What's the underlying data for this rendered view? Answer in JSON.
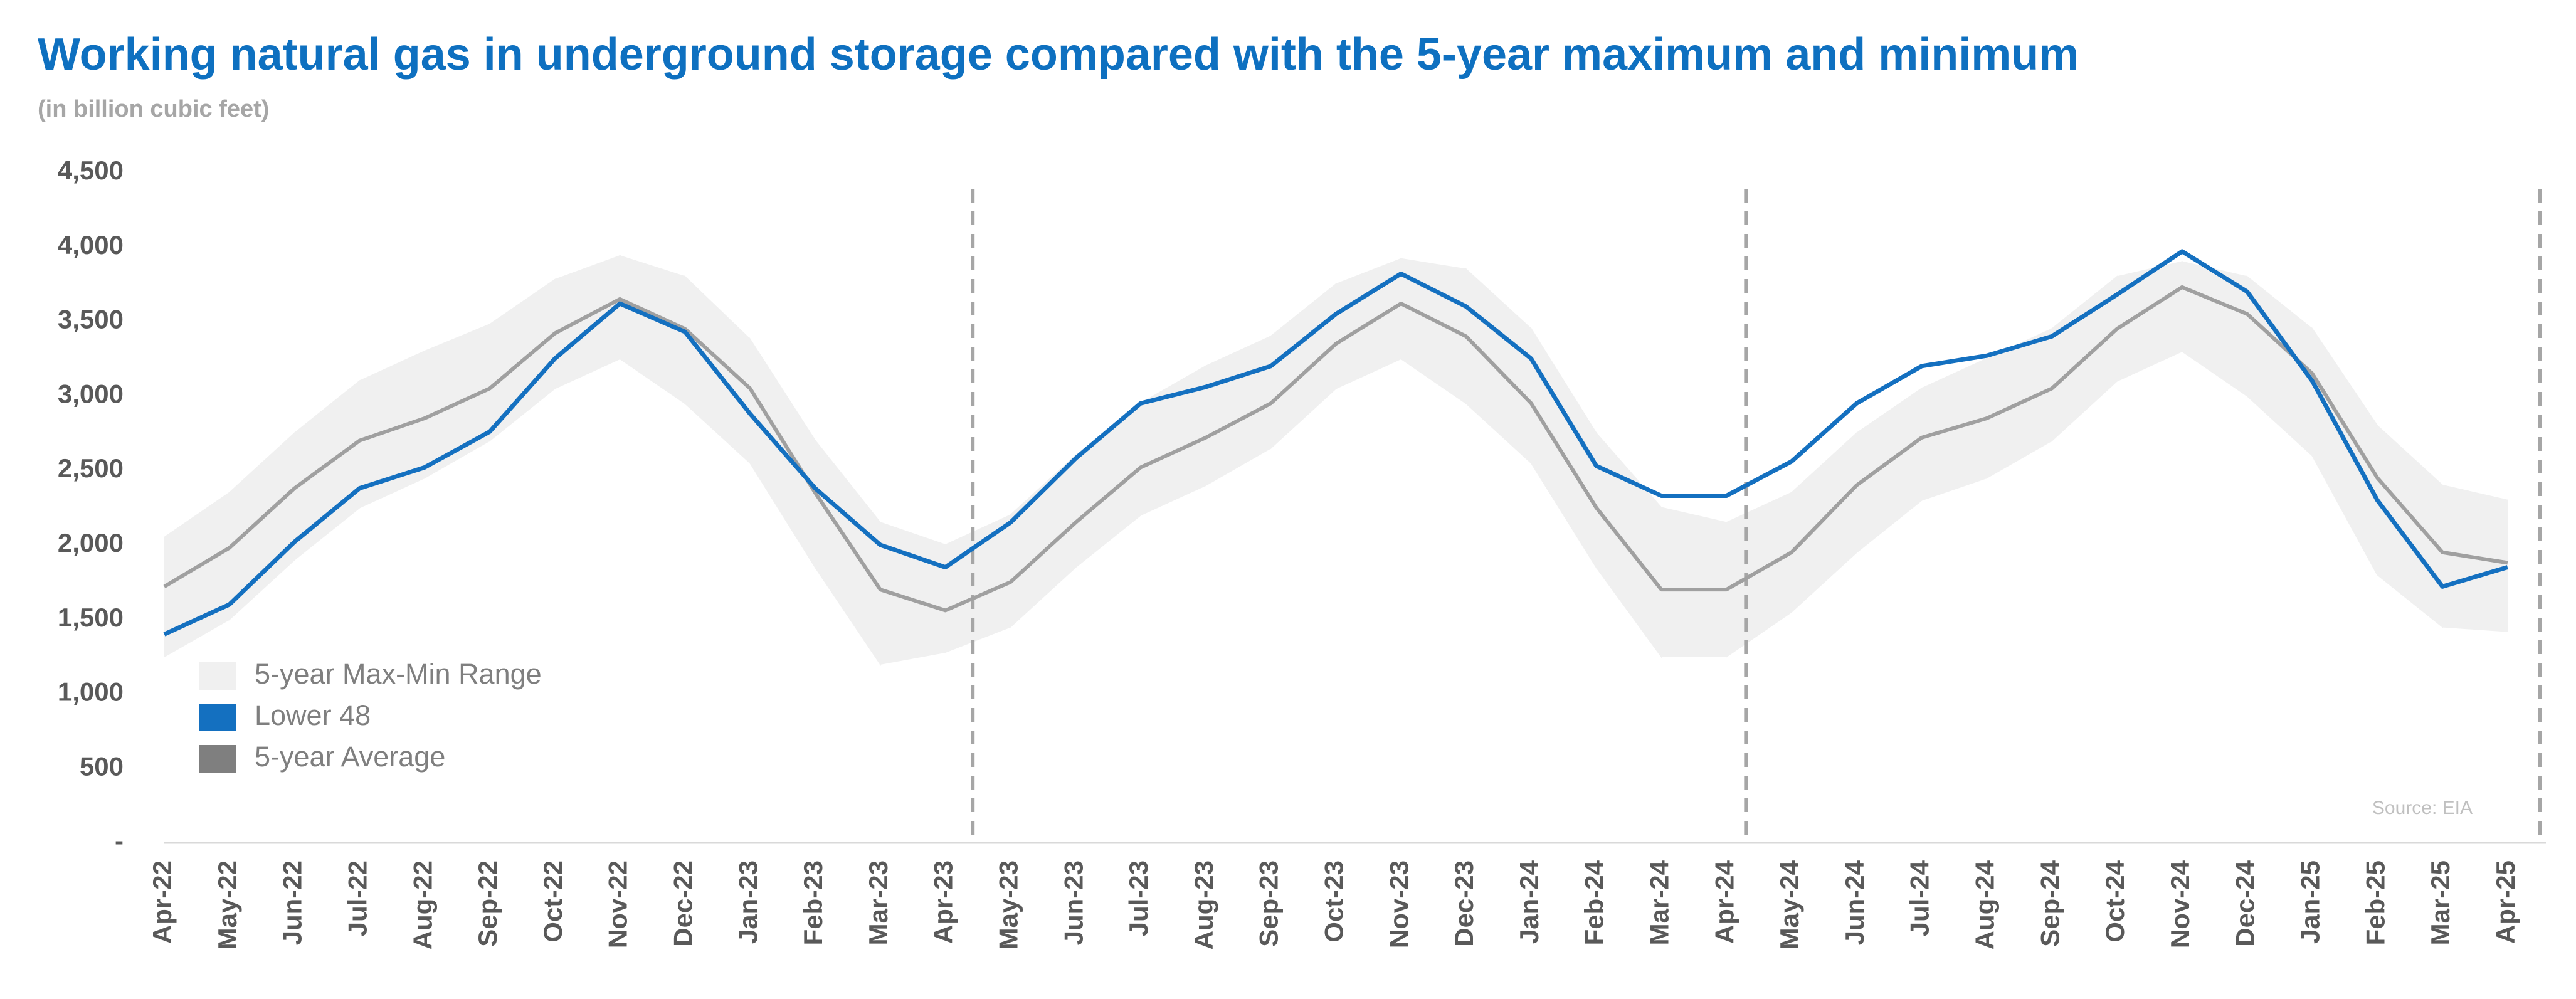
{
  "chart_data": {
    "type": "line",
    "title": "Working natural gas in underground storage compared with the  5-year maximum and minimum",
    "subtitle": "(in billion cubic feet)",
    "source": "Source: EIA",
    "categories": [
      "Apr-22",
      "May-22",
      "Jun-22",
      "Jul-22",
      "Aug-22",
      "Sep-22",
      "Oct-22",
      "Nov-22",
      "Dec-22",
      "Jan-23",
      "Feb-23",
      "Mar-23",
      "Apr-23",
      "May-23",
      "Jun-23",
      "Jul-23",
      "Aug-23",
      "Sep-23",
      "Oct-23",
      "Nov-23",
      "Dec-23",
      "Jan-24",
      "Feb-24",
      "Mar-24",
      "Apr-24",
      "May-24",
      "Jun-24",
      "Jul-24",
      "Aug-24",
      "Sep-24",
      "Oct-24",
      "Nov-24",
      "Dec-24",
      "Jan-25",
      "Feb-25",
      "Mar-25",
      "Apr-25"
    ],
    "ylim": [
      0,
      4500
    ],
    "yticks": [
      {
        "value": 0,
        "label": "-"
      },
      500,
      {
        "value": 1000,
        "label": "1,000"
      },
      {
        "value": 1500,
        "label": "1,500"
      },
      {
        "value": 2000,
        "label": "2,000"
      },
      {
        "value": 2500,
        "label": "2,500"
      },
      {
        "value": 3000,
        "label": "3,000"
      },
      {
        "value": 3500,
        "label": "3,500"
      },
      {
        "value": 4000,
        "label": "4,000"
      },
      {
        "value": 4500,
        "label": "4,500"
      }
    ],
    "series": [
      {
        "name": "5-year Max-Min Range",
        "color": "#f0f0f0",
        "values": [
          2050,
          2350,
          2750,
          3100,
          3300,
          3480,
          3780,
          3940,
          3800,
          3380,
          2700,
          2150,
          2000,
          2200,
          2600,
          2950,
          3200,
          3400,
          3750,
          3920,
          3850,
          3450,
          2750,
          2250,
          2150,
          2350,
          2750,
          3050,
          3250,
          3450,
          3800,
          3900,
          3800,
          3450,
          2800,
          2400,
          2300
        ],
        "low": [
          1250,
          1500,
          1900,
          2250,
          2450,
          2700,
          3050,
          3250,
          2950,
          2550,
          1850,
          1200,
          1280,
          1450,
          1850,
          2200,
          2400,
          2650,
          3050,
          3250,
          2950,
          2550,
          1850,
          1250,
          1250,
          1550,
          1950,
          2300,
          2450,
          2700,
          3100,
          3300,
          3000,
          2600,
          1800,
          1450,
          1420
        ]
      },
      {
        "name": "Lower 48",
        "color": "#1470c0",
        "values": [
          1400,
          1600,
          2020,
          2380,
          2520,
          2760,
          3250,
          3620,
          3430,
          2880,
          2380,
          2000,
          1850,
          2150,
          2580,
          2950,
          3060,
          3200,
          3550,
          3820,
          3600,
          3250,
          2530,
          2330,
          2330,
          2560,
          2950,
          3200,
          3270,
          3400,
          3680,
          3970,
          3700,
          3100,
          2300,
          1720,
          1850
        ]
      },
      {
        "name": "5-year Average",
        "color": "#a0a0a0",
        "values": [
          1720,
          1980,
          2380,
          2700,
          2850,
          3050,
          3420,
          3650,
          3450,
          3050,
          2350,
          1700,
          1560,
          1750,
          2150,
          2520,
          2720,
          2950,
          3350,
          3620,
          3400,
          2950,
          2250,
          1700,
          1700,
          1950,
          2400,
          2720,
          2850,
          3050,
          3450,
          3730,
          3550,
          3150,
          2450,
          1950,
          1880
        ]
      }
    ]
  }
}
